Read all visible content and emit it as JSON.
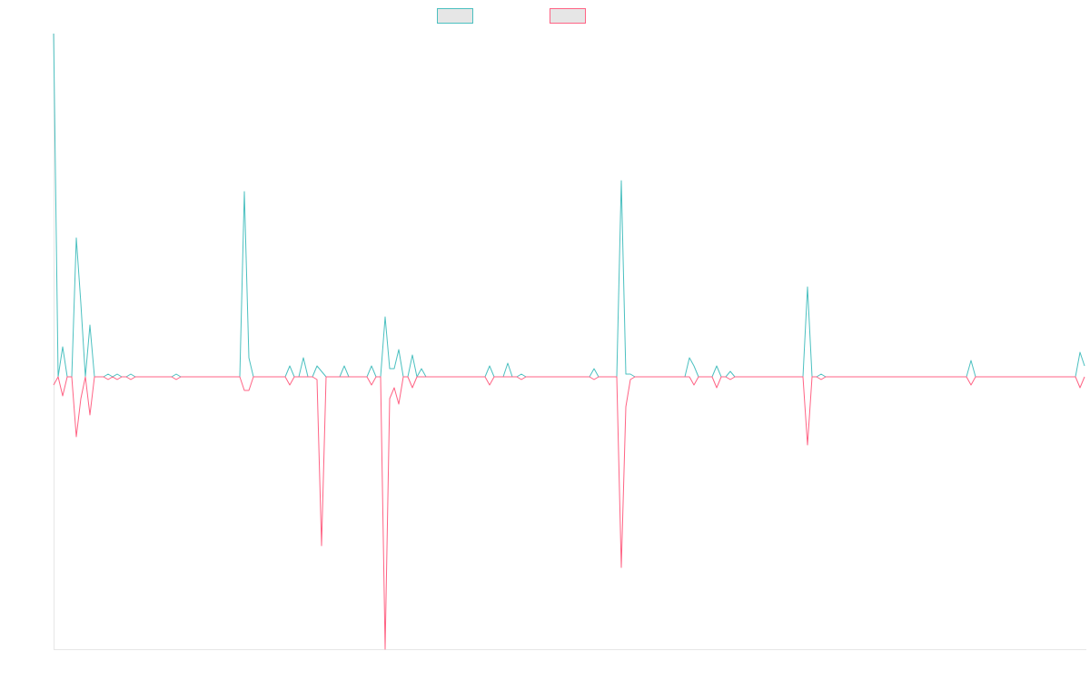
{
  "chart_data": {
    "type": "line",
    "categories": [
      null,
      null,
      null,
      null,
      null,
      null,
      null,
      null,
      null,
      null,
      null,
      null,
      null,
      null,
      null,
      null,
      null,
      null,
      null,
      null,
      null,
      null,
      null,
      null,
      null,
      null,
      null,
      null,
      null,
      null,
      null,
      null,
      null,
      null,
      null,
      null,
      null,
      null,
      null,
      null,
      null,
      null,
      null,
      null,
      null,
      null,
      null,
      null,
      null,
      null,
      null,
      null,
      null,
      null,
      null,
      null,
      null,
      null,
      null,
      null,
      null,
      null,
      null,
      null,
      null,
      null,
      null,
      null,
      null,
      null,
      null,
      null,
      null,
      null,
      null,
      null,
      null,
      null,
      null,
      null,
      null,
      null,
      null,
      null,
      null,
      null,
      null,
      null,
      null,
      null,
      null,
      null,
      null,
      null,
      null,
      null,
      null,
      null,
      null,
      null,
      null,
      null,
      null,
      null,
      null,
      null,
      null,
      null,
      null,
      null,
      null,
      null,
      null,
      null,
      null,
      null,
      null,
      null,
      null,
      null,
      null,
      null,
      null,
      null,
      null,
      null,
      null,
      null,
      null,
      null,
      null,
      null,
      null,
      null,
      null,
      null,
      null,
      null,
      null,
      null,
      null,
      null,
      null,
      null,
      null,
      null,
      null,
      null,
      null,
      null,
      null,
      null,
      null,
      null,
      null,
      null,
      null,
      null,
      null,
      null,
      null,
      null,
      null,
      null,
      null,
      null,
      null,
      null,
      null,
      null,
      null,
      null,
      null,
      null,
      null,
      null,
      null,
      null,
      null,
      null,
      null,
      null,
      null,
      null,
      null,
      null,
      null,
      null,
      null,
      null,
      null,
      null,
      null,
      null,
      null,
      null,
      null,
      null,
      null,
      null,
      null,
      null,
      null,
      null,
      null,
      null,
      null,
      null,
      null,
      null,
      null,
      null,
      null,
      null,
      null,
      null,
      null,
      null,
      null,
      null,
      null,
      null,
      null,
      null,
      null,
      null,
      null,
      null
    ],
    "series": [
      {
        "color": "#4bc0c0",
        "values": [
          126,
          0,
          11,
          0,
          0,
          51,
          27,
          0,
          19,
          0,
          0,
          0,
          1,
          0,
          1,
          0,
          0,
          1,
          0,
          0,
          0,
          0,
          0,
          0,
          0,
          0,
          0,
          1,
          0,
          0,
          0,
          0,
          0,
          0,
          0,
          0,
          0,
          0,
          0,
          0,
          0,
          0,
          68,
          7,
          0,
          0,
          0,
          0,
          0,
          0,
          0,
          0,
          4,
          0,
          0,
          7,
          0,
          0,
          4,
          2,
          0,
          0,
          0,
          0,
          4,
          0,
          0,
          0,
          0,
          0,
          4,
          0,
          0,
          22,
          3,
          3,
          10,
          0,
          0,
          8,
          0,
          3,
          0,
          0,
          0,
          0,
          0,
          0,
          0,
          0,
          0,
          0,
          0,
          0,
          0,
          0,
          4,
          0,
          0,
          0,
          5,
          0,
          0,
          1,
          0,
          0,
          0,
          0,
          0,
          0,
          0,
          0,
          0,
          0,
          0,
          0,
          0,
          0,
          0,
          3,
          0,
          0,
          0,
          0,
          0,
          72,
          1,
          1,
          0,
          0,
          0,
          0,
          0,
          0,
          0,
          0,
          0,
          0,
          0,
          0,
          7,
          4,
          0,
          0,
          0,
          0,
          4,
          0,
          0,
          2,
          0,
          0,
          0,
          0,
          0,
          0,
          0,
          0,
          0,
          0,
          0,
          0,
          0,
          0,
          0,
          0,
          33,
          0,
          0,
          1,
          0,
          0,
          0,
          0,
          0,
          0,
          0,
          0,
          0,
          0,
          0,
          0,
          0,
          0,
          0,
          0,
          0,
          0,
          0,
          0,
          0,
          0,
          0,
          0,
          0,
          0,
          0,
          0,
          0,
          0,
          0,
          0,
          6,
          0,
          0,
          0,
          0,
          0,
          0,
          0,
          0,
          0,
          0,
          0,
          0,
          0,
          0,
          0,
          0,
          0,
          0,
          0,
          0,
          0,
          0,
          0,
          9,
          4
        ]
      },
      {
        "color": "#ff6384",
        "values": [
          -3,
          0,
          -7,
          0,
          0,
          -22,
          -8,
          0,
          -14,
          0,
          0,
          0,
          -1,
          0,
          -1,
          0,
          0,
          -1,
          0,
          0,
          0,
          0,
          0,
          0,
          0,
          0,
          0,
          -1,
          0,
          0,
          0,
          0,
          0,
          0,
          0,
          0,
          0,
          0,
          0,
          0,
          0,
          0,
          -5,
          -5,
          0,
          0,
          0,
          0,
          0,
          0,
          0,
          0,
          -3,
          0,
          0,
          0,
          0,
          0,
          -1,
          -62,
          0,
          0,
          0,
          0,
          0,
          0,
          0,
          0,
          0,
          0,
          -3,
          0,
          0,
          -100,
          -8,
          -4,
          -10,
          0,
          0,
          -4,
          0,
          0,
          0,
          0,
          0,
          0,
          0,
          0,
          0,
          0,
          0,
          0,
          0,
          0,
          0,
          0,
          -3,
          0,
          0,
          0,
          0,
          0,
          0,
          -1,
          0,
          0,
          0,
          0,
          0,
          0,
          0,
          0,
          0,
          0,
          0,
          0,
          0,
          0,
          0,
          -1,
          0,
          0,
          0,
          0,
          0,
          -70,
          -11,
          -1,
          0,
          0,
          0,
          0,
          0,
          0,
          0,
          0,
          0,
          0,
          0,
          0,
          0,
          -3,
          0,
          0,
          0,
          0,
          -4,
          0,
          0,
          -1,
          0,
          0,
          0,
          0,
          0,
          0,
          0,
          0,
          0,
          0,
          0,
          0,
          0,
          0,
          0,
          0,
          -25,
          0,
          0,
          -1,
          0,
          0,
          0,
          0,
          0,
          0,
          0,
          0,
          0,
          0,
          0,
          0,
          0,
          0,
          0,
          0,
          0,
          0,
          0,
          0,
          0,
          0,
          0,
          0,
          0,
          0,
          0,
          0,
          0,
          0,
          0,
          0,
          -3,
          0,
          0,
          0,
          0,
          0,
          0,
          0,
          0,
          0,
          0,
          0,
          0,
          0,
          0,
          0,
          0,
          0,
          0,
          0,
          0,
          0,
          0,
          0,
          -4,
          0
        ]
      }
    ],
    "ylim": [
      -100,
      126
    ]
  }
}
